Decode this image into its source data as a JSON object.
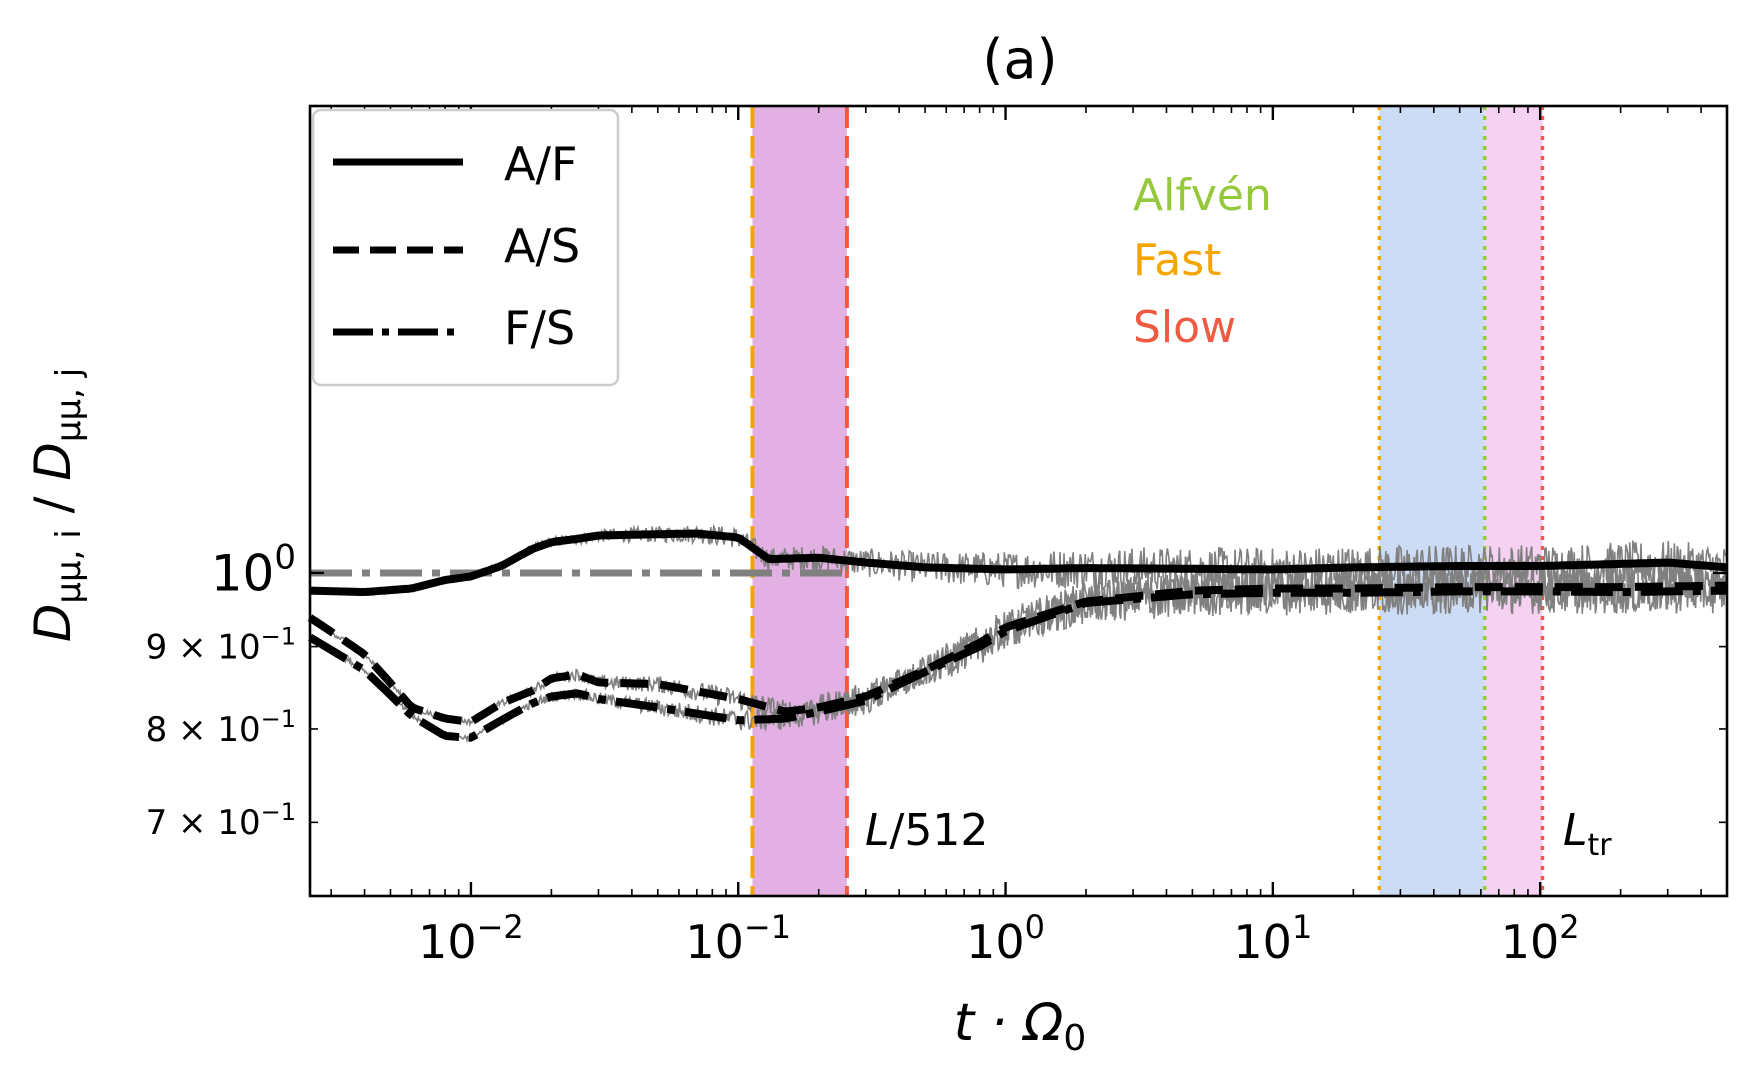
{
  "chart_data": {
    "type": "line",
    "title": "(a)",
    "xlabel": "t · Ω",
    "xlabel_sub": "0",
    "ylabel": "D",
    "ylabel_sub_num": "μμ, i",
    "ylabel_sep": " / ",
    "ylabel_sub_den": "μμ, j",
    "x_scale": "log",
    "y_scale": "log",
    "xlim": [
      0.0025,
      500
    ],
    "ylim": [
      0.63,
      1.95
    ],
    "x_ticks": [
      {
        "value": 0.01,
        "base": "10",
        "exp": "−2"
      },
      {
        "value": 0.1,
        "base": "10",
        "exp": "−1"
      },
      {
        "value": 1,
        "base": "10",
        "exp": "0"
      },
      {
        "value": 10,
        "base": "10",
        "exp": "1"
      },
      {
        "value": 100,
        "base": "10",
        "exp": "2"
      }
    ],
    "y_ticks": [
      {
        "value": 1.0,
        "mant": "",
        "base": "10",
        "exp": "0",
        "major": true
      },
      {
        "value": 0.9,
        "mant": "9 × ",
        "base": "10",
        "exp": "−1",
        "major": false
      },
      {
        "value": 0.8,
        "mant": "8 × ",
        "base": "10",
        "exp": "−1",
        "major": false
      },
      {
        "value": 0.7,
        "mant": "7 × ",
        "base": "10",
        "exp": "−1",
        "major": false
      }
    ],
    "bands": [
      {
        "x0": 0.113,
        "x1": 0.255,
        "color": "#e2b0e2"
      },
      {
        "x0": 25,
        "x1": 62,
        "color": "#cddcf5"
      },
      {
        "x0": 62,
        "x1": 102,
        "color": "#f5d2f2"
      }
    ],
    "vlines": [
      {
        "x": 0.113,
        "color": "#f5a500",
        "style": "dashed"
      },
      {
        "x": 0.255,
        "color": "#ee5b42",
        "style": "dashed"
      },
      {
        "x": 25,
        "color": "#f5a500",
        "style": "dotted"
      },
      {
        "x": 62,
        "color": "#8fce3a",
        "style": "dotted"
      },
      {
        "x": 102,
        "color": "#ee5b42",
        "style": "dotted"
      }
    ],
    "reference_line": {
      "y": 1.0,
      "x0": 0.0025,
      "x1": 0.25,
      "color": "#808080",
      "style": "dashdot"
    },
    "series": [
      {
        "name": "A/F",
        "style": "solid",
        "x": [
          0.0025,
          0.004,
          0.006,
          0.008,
          0.01,
          0.013,
          0.017,
          0.02,
          0.025,
          0.03,
          0.05,
          0.07,
          0.1,
          0.13,
          0.2,
          0.3,
          0.5,
          1,
          2,
          5,
          10,
          20,
          50,
          100,
          200,
          300,
          500
        ],
        "y": [
          0.975,
          0.973,
          0.978,
          0.99,
          0.995,
          1.01,
          1.035,
          1.045,
          1.05,
          1.055,
          1.057,
          1.058,
          1.052,
          1.02,
          1.022,
          1.015,
          1.008,
          1.005,
          1.007,
          1.006,
          1.005,
          1.008,
          1.01,
          1.01,
          1.013,
          1.015,
          1.008
        ]
      },
      {
        "name": "A/S",
        "style": "dashed",
        "x": [
          0.0025,
          0.004,
          0.006,
          0.008,
          0.01,
          0.013,
          0.017,
          0.02,
          0.025,
          0.03,
          0.05,
          0.1,
          0.15,
          0.2,
          0.3,
          0.5,
          0.8,
          1,
          2,
          5,
          10,
          20,
          50,
          100,
          200,
          500
        ],
        "y": [
          0.938,
          0.89,
          0.825,
          0.812,
          0.808,
          0.83,
          0.845,
          0.86,
          0.865,
          0.855,
          0.853,
          0.835,
          0.82,
          0.825,
          0.838,
          0.87,
          0.905,
          0.925,
          0.96,
          0.975,
          0.978,
          0.978,
          0.98,
          0.98,
          0.98,
          0.982
        ]
      },
      {
        "name": "F/S",
        "style": "dashdot",
        "x": [
          0.0025,
          0.004,
          0.006,
          0.008,
          0.01,
          0.013,
          0.017,
          0.02,
          0.025,
          0.03,
          0.05,
          0.1,
          0.15,
          0.2,
          0.3,
          0.5,
          0.8,
          1,
          2,
          5,
          10,
          20,
          50,
          100,
          200,
          500
        ],
        "y": [
          0.912,
          0.87,
          0.815,
          0.792,
          0.79,
          0.81,
          0.83,
          0.838,
          0.842,
          0.835,
          0.825,
          0.81,
          0.812,
          0.82,
          0.833,
          0.868,
          0.9,
          0.92,
          0.958,
          0.97,
          0.972,
          0.972,
          0.974,
          0.974,
          0.973,
          0.975
        ]
      }
    ],
    "legend": {
      "position": "upper-left",
      "entries": [
        {
          "label": "A/F",
          "style": "solid"
        },
        {
          "label": "A/S",
          "style": "dashed"
        },
        {
          "label": "F/S",
          "style": "dashdot"
        }
      ]
    },
    "annotations": [
      {
        "text": "Alfvén",
        "color": "#96c83c"
      },
      {
        "text": "Fast",
        "color": "#f5a500"
      },
      {
        "text": "Slow",
        "color": "#ee5b42"
      }
    ],
    "scale_labels": [
      {
        "text": "L",
        "rest": "/512",
        "sub": "",
        "x": 0.255
      },
      {
        "text": "L",
        "rest": "",
        "sub": "tr",
        "x": 102
      }
    ],
    "colors": {
      "main": "#000000",
      "noise": "#808080"
    }
  }
}
